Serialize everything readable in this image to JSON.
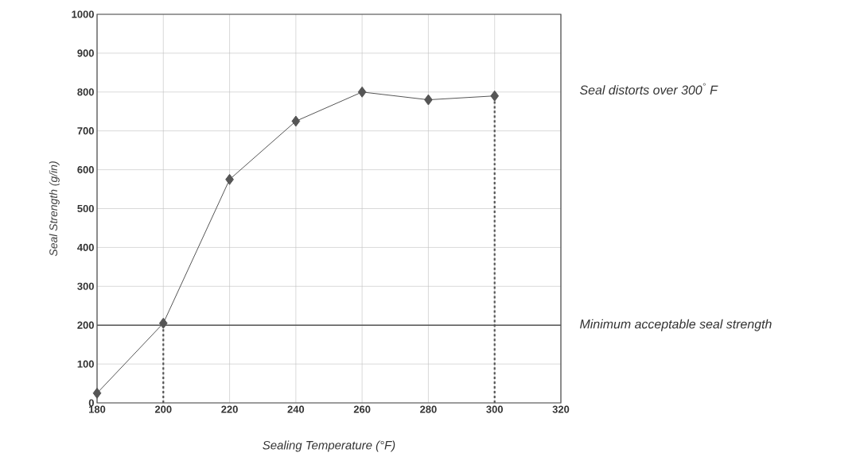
{
  "chart_data": {
    "type": "line",
    "xlabel": "Sealing Temperature (°F)",
    "ylabel": "Seal Strength (g/in)",
    "xlim": [
      180,
      320
    ],
    "xticks": [
      180,
      200,
      220,
      240,
      260,
      280,
      300,
      320
    ],
    "ylim": [
      0,
      1000
    ],
    "yticks": [
      0,
      100,
      200,
      300,
      400,
      500,
      600,
      700,
      800,
      900,
      1000
    ],
    "grid": true,
    "marker": "diamond",
    "line_style": "solid",
    "series": [
      {
        "color": "#555555",
        "x": [
          180,
          200,
          220,
          240,
          260,
          280,
          300
        ],
        "values": [
          25,
          205,
          575,
          725,
          800,
          780,
          790
        ]
      },
      {
        "color": "#555555",
        "x": [
          200,
          200
        ],
        "values": [
          0,
          205
        ],
        "marker": "none",
        "line_style": "dashed"
      },
      {
        "color": "#555555",
        "x": [
          300,
          300
        ],
        "values": [
          0,
          790
        ],
        "marker": "none",
        "line_style": "dashed"
      }
    ],
    "ref_lines": [
      {
        "axis": "y",
        "value": 200,
        "label": "Minimum acceptable seal strength",
        "color": "#555555"
      }
    ],
    "annotations": [
      "Seal distorts over 300$^{°}$ F"
    ]
  }
}
